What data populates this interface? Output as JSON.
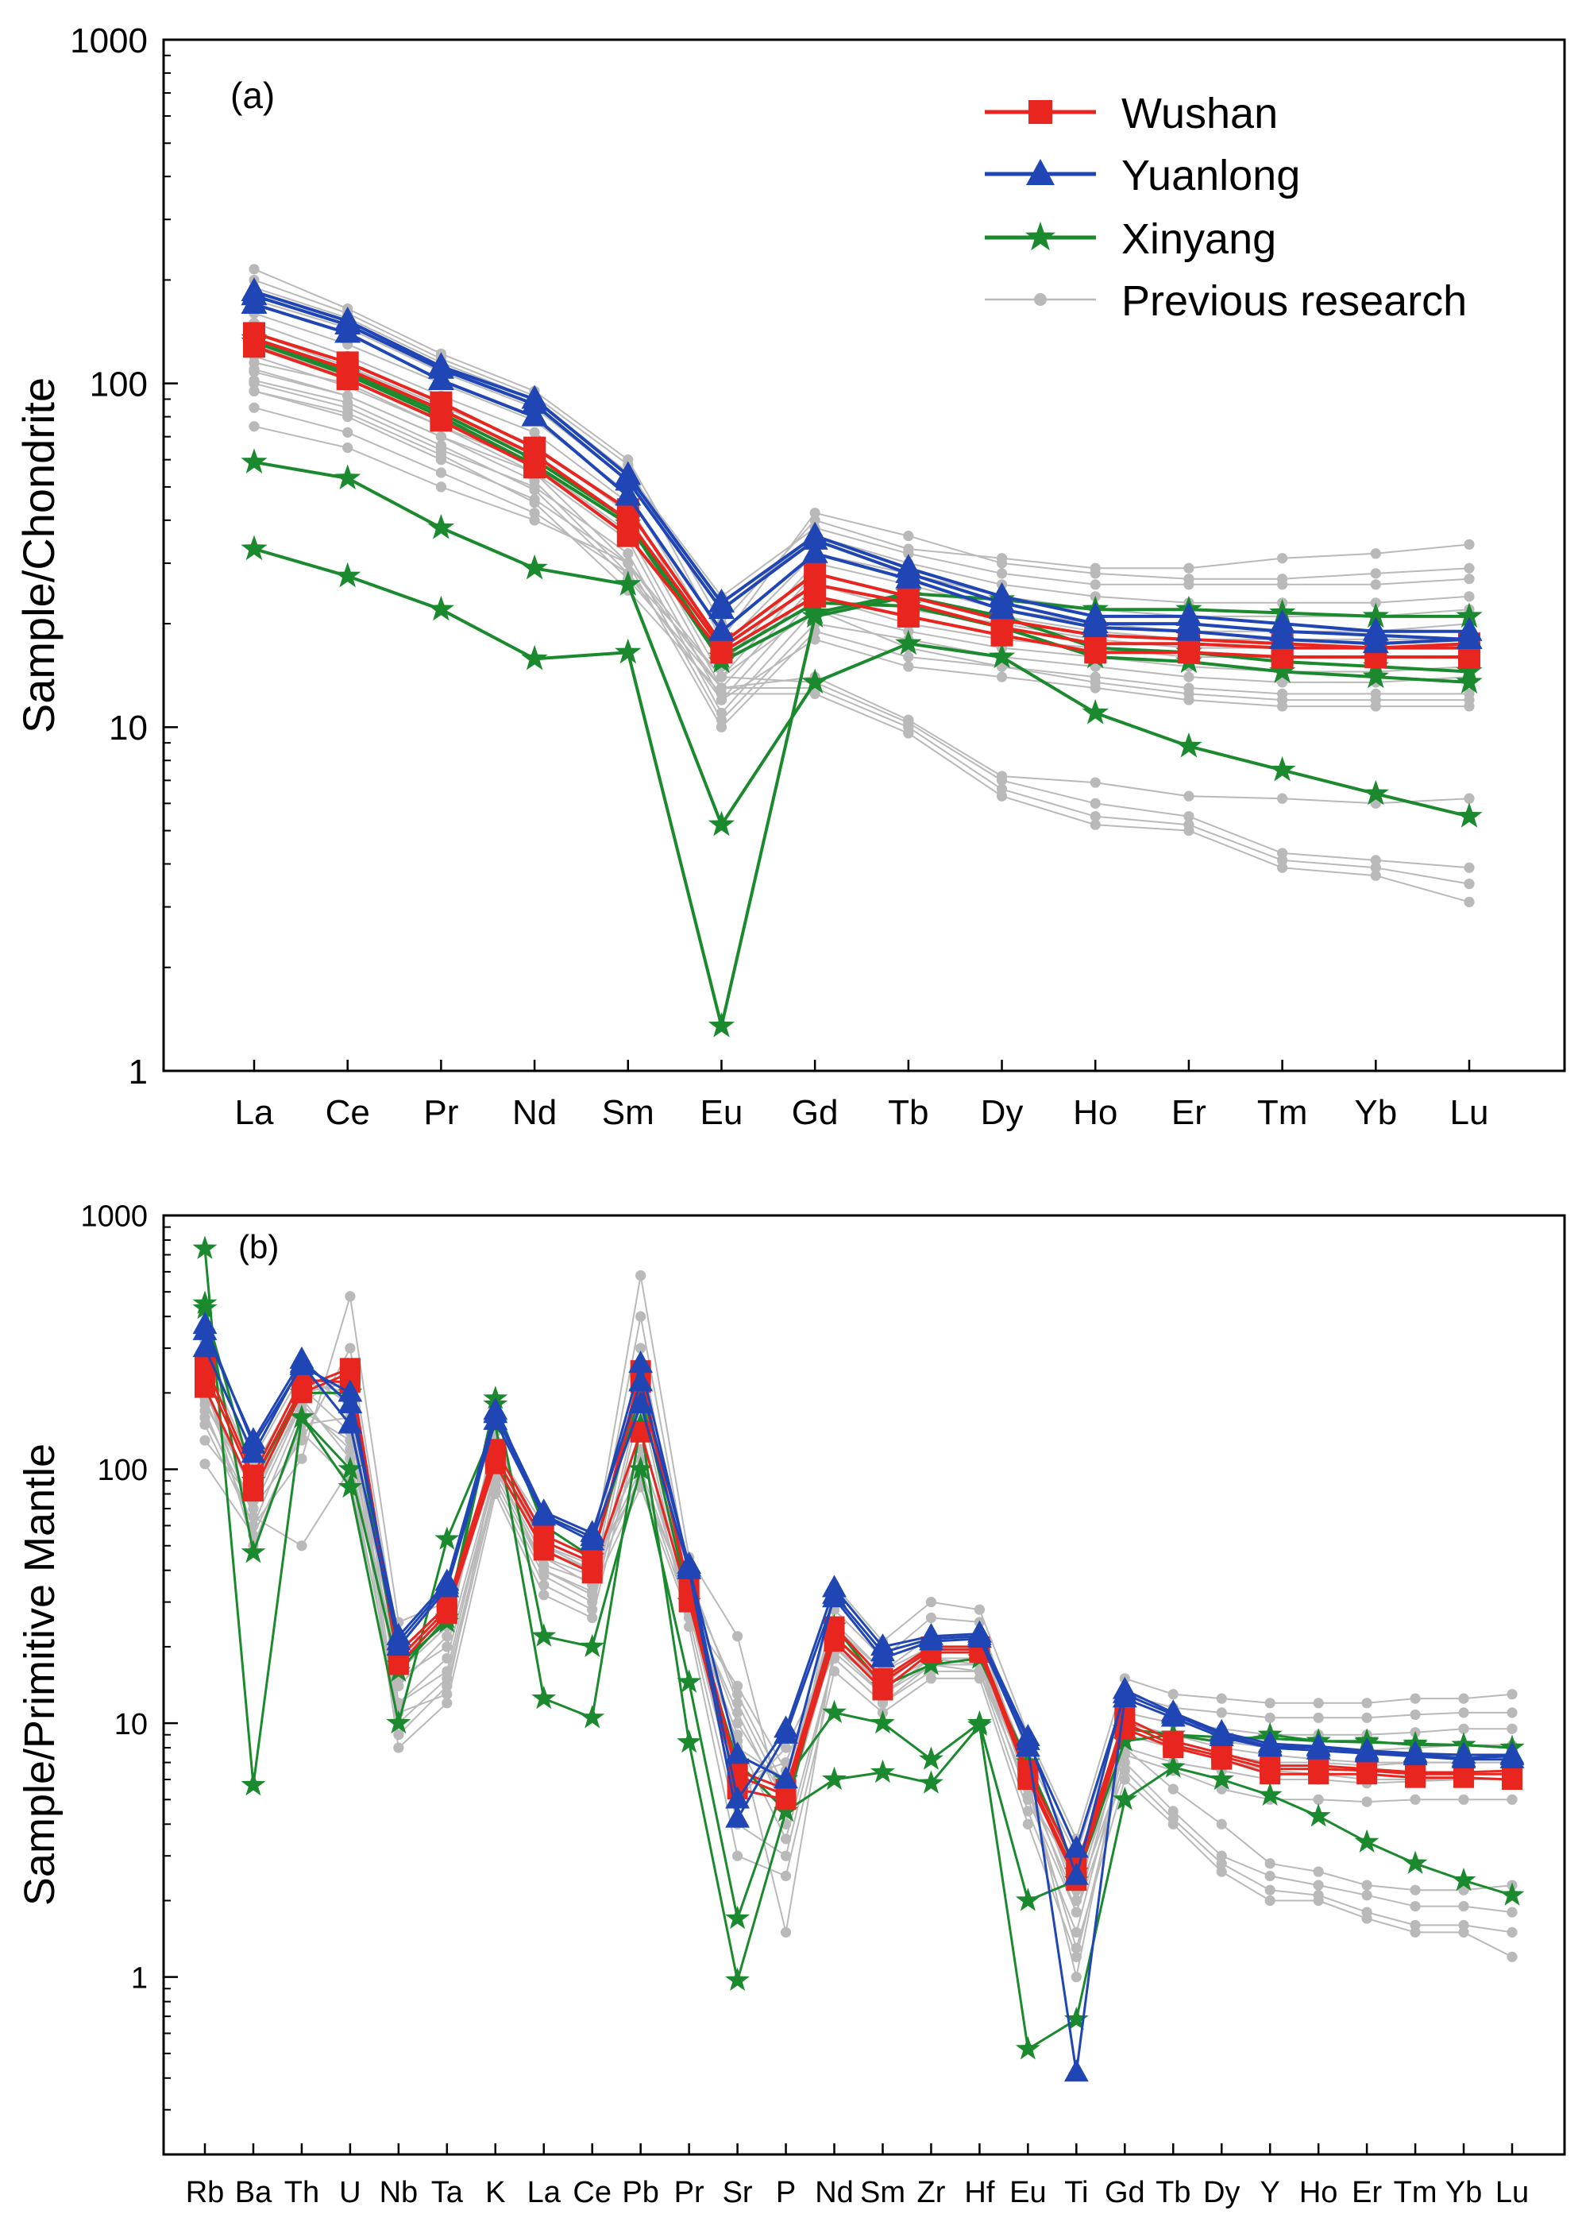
{
  "colors": {
    "wushan": "#e8261f",
    "yuanlong": "#1f46b4",
    "xinyang": "#1b8a2e",
    "previous": "#b9b9b9",
    "axis": "#000000"
  },
  "legend": {
    "wushan": "Wushan",
    "yuanlong": "Yuanlong",
    "xinyang": "Xinyang",
    "previous": "Previous research"
  },
  "chart_data": [
    {
      "panel_label": "(a)",
      "type": "line",
      "scale": "log",
      "ylabel": "Sample/Chondrite",
      "ylim": [
        1,
        1000
      ],
      "y_ticks": [
        "1",
        "10",
        "100",
        "1000"
      ],
      "categories": [
        "La",
        "Ce",
        "Pr",
        "Nd",
        "Sm",
        "Eu",
        "Gd",
        "Tb",
        "Dy",
        "Ho",
        "Er",
        "Tm",
        "Yb",
        "Lu"
      ],
      "legend_position": "top-right",
      "groups": {
        "wushan": [
          [
            128,
            103,
            78,
            57,
            36,
            16.5,
            24,
            21,
            18.5,
            16.5,
            16.5,
            16,
            16,
            16
          ],
          [
            135,
            110,
            84,
            62,
            40,
            17,
            26,
            23,
            19.5,
            17.5,
            17.5,
            17,
            17,
            17
          ],
          [
            140,
            115,
            88,
            65,
            43,
            17.5,
            28,
            24,
            20.5,
            18.5,
            18,
            17.5,
            17,
            17.5
          ]
        ],
        "yuanlong": [
          [
            170,
            140,
            102,
            80,
            47,
            19,
            32,
            27,
            22,
            19.5,
            19,
            18,
            17.5,
            18
          ],
          [
            180,
            148,
            110,
            87,
            52,
            22,
            35,
            28,
            23,
            20,
            20,
            19,
            18.5,
            18
          ],
          [
            185,
            152,
            112,
            90,
            54,
            23,
            36,
            29,
            24,
            21,
            21,
            20,
            19,
            19
          ]
        ],
        "xinyang": [
          [
            132,
            106,
            80,
            58,
            39,
            15.5,
            21.5,
            24.5,
            23.5,
            22,
            22,
            21.5,
            21,
            21
          ],
          [
            135,
            108,
            82,
            60,
            40,
            16,
            23,
            22.5,
            19.5,
            16,
            15.5,
            14.5,
            14,
            13.5
          ],
          [
            59,
            53,
            38,
            29,
            26,
            5.2,
            13.5,
            17.5,
            16,
            11,
            8.8,
            7.5,
            6.4,
            5.5
          ],
          [
            33,
            27.5,
            22,
            15.8,
            16.5,
            1.35,
            21,
            24,
            21,
            17,
            16.5,
            15.5,
            15,
            14.5
          ]
        ],
        "previous": [
          [
            215,
            165,
            122,
            95,
            60,
            20,
            40,
            33,
            31,
            29,
            29,
            31,
            32,
            34
          ],
          [
            200,
            160,
            118,
            92,
            58,
            18,
            42,
            36,
            30,
            28,
            27,
            27,
            28,
            29
          ],
          [
            190,
            155,
            115,
            90,
            55,
            24,
            38,
            32,
            28,
            26,
            26,
            26,
            26,
            27
          ],
          [
            175,
            145,
            108,
            85,
            52,
            22,
            36,
            30,
            26,
            24,
            23,
            23,
            23,
            24
          ],
          [
            160,
            130,
            100,
            78,
            48,
            17,
            32,
            28,
            24,
            22,
            21,
            21,
            21,
            22
          ],
          [
            150,
            120,
            92,
            72,
            45,
            15,
            30,
            26,
            22,
            20,
            19,
            19,
            19,
            20
          ],
          [
            140,
            112,
            86,
            66,
            42,
            14,
            28,
            24,
            21,
            19,
            18,
            18,
            18,
            18
          ],
          [
            130,
            105,
            80,
            62,
            40,
            13,
            26,
            22,
            20,
            18,
            17,
            17,
            17,
            17
          ],
          [
            120,
            98,
            75,
            58,
            37,
            12,
            24,
            20,
            18,
            17,
            16,
            16,
            16,
            16
          ],
          [
            110,
            92,
            70,
            55,
            35,
            11,
            22,
            19,
            17,
            16,
            15,
            14.5,
            14.5,
            15
          ],
          [
            100,
            85,
            64,
            50,
            32,
            10.5,
            20,
            18,
            16,
            15,
            14,
            13.5,
            13.5,
            14
          ],
          [
            95,
            80,
            60,
            46,
            30,
            10,
            19,
            16,
            15,
            14,
            13,
            12.5,
            12.5,
            12.5
          ],
          [
            85,
            72,
            55,
            42,
            28,
            12,
            18,
            15,
            14,
            13,
            12,
            11.5,
            11.5,
            11.5
          ],
          [
            75,
            65,
            50,
            40,
            30,
            14,
            22,
            17,
            15,
            13.5,
            12.5,
            12,
            12,
            12
          ],
          [
            115,
            100,
            75,
            55,
            30,
            13,
            14,
            10.5,
            7.2,
            6.9,
            6.3,
            6.2,
            6.0,
            6.2
          ],
          [
            108,
            92,
            70,
            52,
            28,
            14,
            13.5,
            10.3,
            7.0,
            6.0,
            5.5,
            4.3,
            4.1,
            3.9
          ],
          [
            102,
            88,
            66,
            49,
            27,
            13,
            13,
            10,
            6.6,
            5.5,
            5.2,
            4.1,
            3.9,
            3.5
          ],
          [
            95,
            82,
            62,
            45,
            25,
            12.5,
            12.5,
            9.6,
            6.3,
            5.2,
            5.0,
            3.9,
            3.7,
            3.1
          ]
        ]
      }
    },
    {
      "panel_label": "(b)",
      "type": "line",
      "scale": "log",
      "ylabel": "Sample/Primitive Mantle",
      "ylim": [
        0.2,
        1000
      ],
      "y_ticks": [
        "1",
        "10",
        "100",
        "1000"
      ],
      "categories": [
        "Rb",
        "Ba",
        "Th",
        "U",
        "Nb",
        "Ta",
        "K",
        "La",
        "Ce",
        "Pb",
        "Pr",
        "Sr",
        "P",
        "Nd",
        "Sm",
        "Zr",
        "Hf",
        "Eu",
        "Ti",
        "Gd",
        "Tb",
        "Dy",
        "Y",
        "Ho",
        "Er",
        "Tm",
        "Yb",
        "Lu"
      ],
      "groups": {
        "wushan": [
          [
            210,
            82,
            200,
            240,
            17,
            27,
            105,
            48,
            39,
            140,
            30,
            5.5,
            5,
            21,
            13.5,
            19,
            19,
            6,
            2.4,
            9.5,
            8,
            7.2,
            6.3,
            6.3,
            6.3,
            6.1,
            6.1,
            6
          ],
          [
            260,
            95,
            225,
            220,
            19,
            29,
            120,
            55,
            45,
            220,
            34,
            6.5,
            5.5,
            24,
            15,
            20,
            20,
            6.5,
            2.7,
            10.5,
            8.5,
            7.6,
            6.8,
            6.8,
            6.6,
            6.4,
            6.4,
            6.5
          ],
          [
            240,
            90,
            210,
            250,
            18,
            28,
            112,
            52,
            43,
            245,
            32,
            6.2,
            5.2,
            22,
            14.5,
            19.5,
            19.5,
            6.2,
            2.5,
            10,
            8.2,
            7.4,
            6.6,
            6.6,
            6.5,
            6.3,
            6.3,
            6.3
          ]
        ],
        "yuanlong": [
          [
            300,
            115,
            260,
            150,
            20,
            34,
            155,
            65,
            52,
            180,
            40,
            4.2,
            9,
            31,
            18,
            21,
            21.5,
            8,
            0.42,
            12.5,
            10.5,
            8.8,
            8,
            7.8,
            7.6,
            7.4,
            7.2,
            7.2
          ],
          [
            350,
            130,
            270,
            180,
            22,
            36,
            170,
            68,
            56,
            220,
            42,
            5,
            9.5,
            34,
            20,
            22,
            22.5,
            8.8,
            2.5,
            13.5,
            11,
            9.2,
            8.3,
            8.1,
            7.8,
            7.6,
            7.5,
            7.5
          ],
          [
            370,
            125,
            255,
            200,
            21,
            35,
            165,
            66,
            54,
            260,
            41,
            7.5,
            6,
            32,
            19,
            21.5,
            22,
            8.5,
            3.2,
            13,
            10.8,
            9,
            8.1,
            8,
            7.7,
            7.5,
            7.3,
            7.4
          ]
        ],
        "xinyang": [
          [
            740,
            5.7,
            160,
            85,
            10,
            53,
            150,
            12.5,
            10.5,
            150,
            8.4,
            0.97,
            4.5,
            6,
            6.4,
            5.8,
            9.8,
            0.52,
            0.68,
            5,
            6.7,
            6,
            5.2,
            4.3,
            3.4,
            2.8,
            2.4,
            2.1
          ],
          [
            450,
            47,
            160,
            100,
            16,
            26,
            190,
            22,
            20,
            100,
            14.5,
            1.7,
            6,
            11,
            10,
            7.2,
            10,
            2,
            2.4,
            8.5,
            9,
            8.4,
            9,
            8.5,
            8.5,
            8.2,
            8.2,
            8
          ],
          [
            430,
            90,
            200,
            200,
            17,
            25,
            180,
            60,
            45,
            200,
            30,
            7,
            4.5,
            24,
            14,
            17,
            18,
            7,
            2.6,
            9.5,
            9,
            8.8,
            8.7,
            8.5,
            8.4,
            8.3,
            8.2,
            8
          ]
        ],
        "previous": [
          [
            170,
            60,
            110,
            480,
            25,
            30,
            120,
            60,
            45,
            580,
            45,
            22,
            4,
            35,
            21,
            30,
            28,
            9,
            3.5,
            15,
            13,
            12.5,
            12,
            12,
            12,
            12.5,
            12.5,
            13
          ],
          [
            160,
            70,
            130,
            300,
            20,
            25,
            110,
            50,
            40,
            400,
            38,
            12,
            5,
            28,
            18,
            26,
            25,
            7.5,
            3,
            13,
            11.5,
            11,
            10.5,
            10.5,
            10.5,
            10.8,
            11,
            11
          ],
          [
            200,
            80,
            180,
            250,
            15,
            20,
            100,
            45,
            35,
            300,
            33,
            8,
            6,
            25,
            16,
            22,
            22,
            6.5,
            2.5,
            11,
            10,
            9.5,
            9,
            9,
            9,
            9.2,
            9.5,
            9.5
          ],
          [
            240,
            90,
            200,
            220,
            12,
            18,
            95,
            40,
            32,
            250,
            30,
            6,
            7,
            22,
            14,
            20,
            20,
            5.5,
            2,
            10,
            9,
            8.5,
            8,
            8,
            7.8,
            8,
            8.2,
            8.2
          ],
          [
            280,
            100,
            220,
            200,
            10,
            15,
            90,
            38,
            30,
            200,
            28,
            5,
            8,
            20,
            13,
            18,
            18,
            5,
            1.8,
            9,
            8,
            7.5,
            7,
            7,
            6.8,
            7,
            7,
            7
          ],
          [
            320,
            110,
            240,
            180,
            9,
            14,
            85,
            35,
            28,
            180,
            26,
            4,
            3,
            18,
            12,
            16,
            16,
            4.5,
            1.5,
            8,
            7,
            6.5,
            6,
            6,
            5.8,
            5.9,
            6,
            6
          ],
          [
            220,
            50,
            150,
            160,
            8,
            12,
            80,
            32,
            26,
            150,
            24,
            3,
            2.5,
            16,
            11,
            15,
            15,
            4,
            1.2,
            7.5,
            6.5,
            5.5,
            5,
            5,
            4.9,
            5,
            5,
            5
          ],
          [
            150,
            60,
            170,
            130,
            14,
            22,
            140,
            45,
            38,
            120,
            28,
            9,
            1.5,
            20,
            14,
            18,
            17,
            6,
            1,
            9,
            8,
            7.2,
            6.5,
            6.3,
            6,
            6,
            6,
            6
          ],
          [
            130,
            75,
            190,
            110,
            16,
            24,
            130,
            50,
            42,
            90,
            32,
            10,
            5,
            22,
            15,
            19,
            19,
            6.5,
            2.2,
            8,
            5.5,
            4,
            2.8,
            2.6,
            2.3,
            2.2,
            2.2,
            2.3
          ],
          [
            180,
            85,
            210,
            140,
            18,
            26,
            125,
            55,
            45,
            110,
            35,
            13,
            5.5,
            24,
            16,
            20,
            20,
            7,
            2,
            7,
            4.5,
            3,
            2.5,
            2.3,
            2.1,
            1.9,
            1.9,
            1.8
          ],
          [
            190,
            70,
            180,
            120,
            17,
            25,
            115,
            48,
            40,
            100,
            30,
            11,
            4.5,
            21,
            14,
            18,
            18,
            6,
            1.8,
            6.5,
            4.2,
            2.8,
            2.2,
            2.1,
            1.8,
            1.6,
            1.6,
            1.5
          ],
          [
            210,
            65,
            50,
            100,
            11,
            13,
            105,
            40,
            33,
            85,
            26,
            8.5,
            3.5,
            18,
            12,
            17,
            16,
            5.5,
            1.3,
            6,
            4,
            2.6,
            2,
            2,
            1.7,
            1.5,
            1.5,
            1.2
          ],
          [
            105,
            55,
            140,
            90,
            12,
            16,
            100,
            42,
            36,
            95,
            27,
            14,
            6.5,
            19,
            13,
            17,
            17,
            5.2,
            2.5,
            10,
            9,
            8,
            7.5,
            7.2,
            7,
            7,
            7,
            7
          ]
        ]
      }
    }
  ]
}
